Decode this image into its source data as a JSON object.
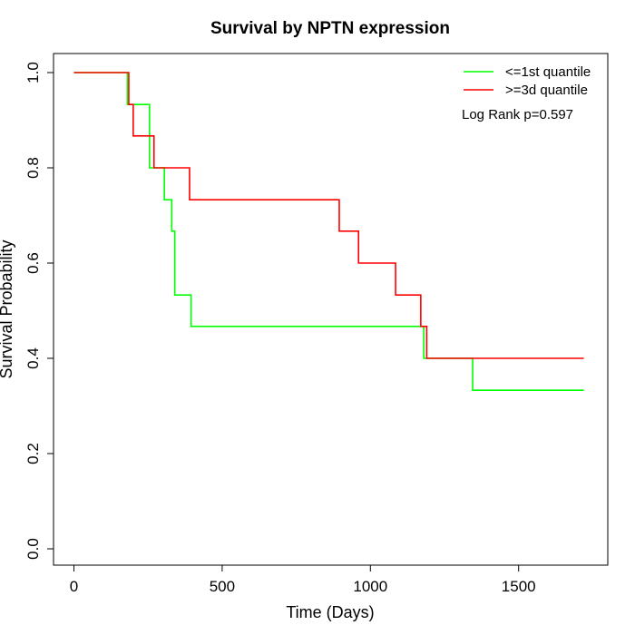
{
  "chart_data": {
    "type": "line",
    "title": "Survival by NPTN expression",
    "xlabel": "Time (Days)",
    "ylabel": "Survival Probability",
    "xlim": [
      0,
      1720
    ],
    "ylim": [
      0,
      1
    ],
    "x_ticks": [
      0,
      500,
      1000,
      1500
    ],
    "x_tick_labels": [
      "0",
      "500",
      "1000",
      "1500"
    ],
    "y_ticks": [
      0,
      0.2,
      0.4,
      0.6,
      0.8,
      1.0
    ],
    "y_tick_labels": [
      "0.0",
      "0.2",
      "0.4",
      "0.6",
      "0.8",
      "1.0"
    ],
    "grid": false,
    "legend_position": "top-right",
    "annotation": "Log Rank p=0.597",
    "step": true,
    "series": [
      {
        "name": "<=1st quantile",
        "color": "#00ff00",
        "x": [
          0,
          180,
          255,
          305,
          330,
          340,
          395,
          1180,
          1345,
          1720
        ],
        "y": [
          1.0,
          0.933,
          0.8,
          0.733,
          0.667,
          0.533,
          0.467,
          0.4,
          0.333,
          0.333
        ]
      },
      {
        "name": ">=3d quantile",
        "color": "#ff0000",
        "x": [
          0,
          185,
          200,
          260,
          270,
          390,
          895,
          960,
          1085,
          1170,
          1190,
          1720
        ],
        "y": [
          1.0,
          0.933,
          0.867,
          0.867,
          0.8,
          0.733,
          0.667,
          0.6,
          0.533,
          0.467,
          0.4,
          0.4
        ]
      }
    ]
  }
}
